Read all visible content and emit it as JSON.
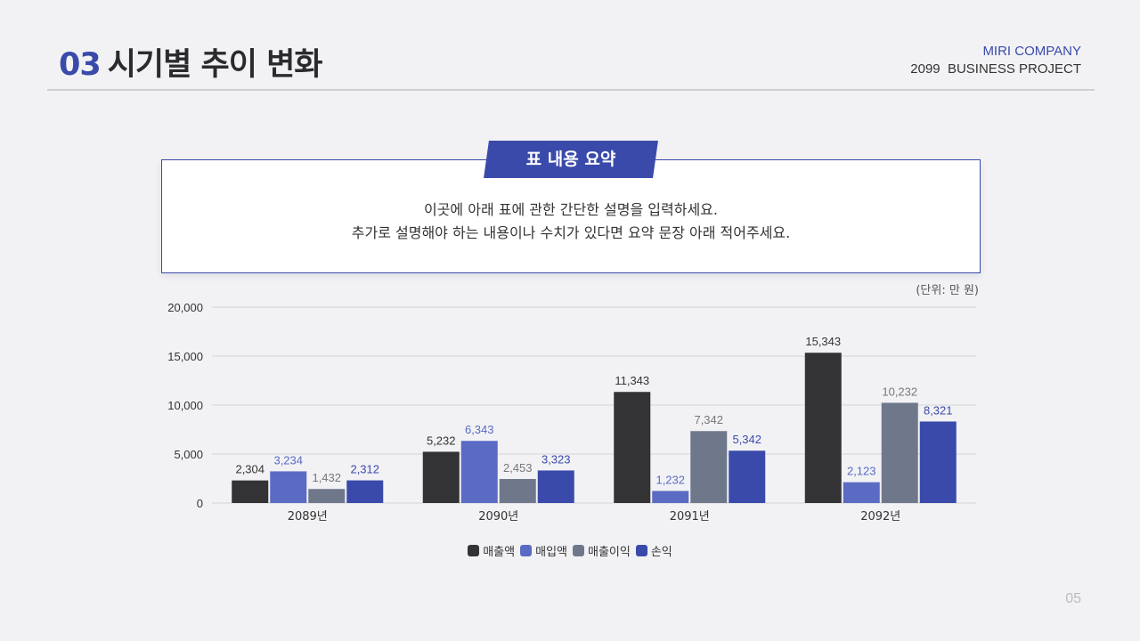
{
  "header": {
    "number": "03",
    "title": "시기별 추이 변화",
    "company": "MIRI COMPANY",
    "project": "2099  BUSINESS PROJECT"
  },
  "summary": {
    "badge": "표 내용 요약",
    "line1": "이곳에 아래 표에 관한 간단한 설명을 입력하세요.",
    "line2": "추가로 설명해야 하는 내용이나 수치가 있다면 요약 문장 아래 적어주세요."
  },
  "page_number": "05",
  "chart_data": {
    "type": "bar",
    "unit_label": "(단위: 만 원)",
    "categories": [
      "2089년",
      "2090년",
      "2091년",
      "2092년"
    ],
    "ylim": [
      0,
      20000
    ],
    "yticks": [
      "0",
      "5,000",
      "10,000",
      "15,000",
      "20,000"
    ],
    "grid": true,
    "legend_position": "bottom",
    "series": [
      {
        "name": "매출액",
        "color": "#333336",
        "label_color": "#333333",
        "values": [
          2304,
          5232,
          11343,
          15343
        ]
      },
      {
        "name": "매입액",
        "color": "#5b6bc4",
        "label_color": "#5b6bc4",
        "values": [
          3234,
          6343,
          1232,
          2123
        ]
      },
      {
        "name": "매출이익",
        "color": "#6f788b",
        "label_color": "#777777",
        "values": [
          1432,
          2453,
          7342,
          10232
        ]
      },
      {
        "name": "손익",
        "color": "#3a4aaa",
        "label_color": "#3a4aaa",
        "values": [
          2312,
          3323,
          5342,
          8321
        ]
      }
    ]
  }
}
